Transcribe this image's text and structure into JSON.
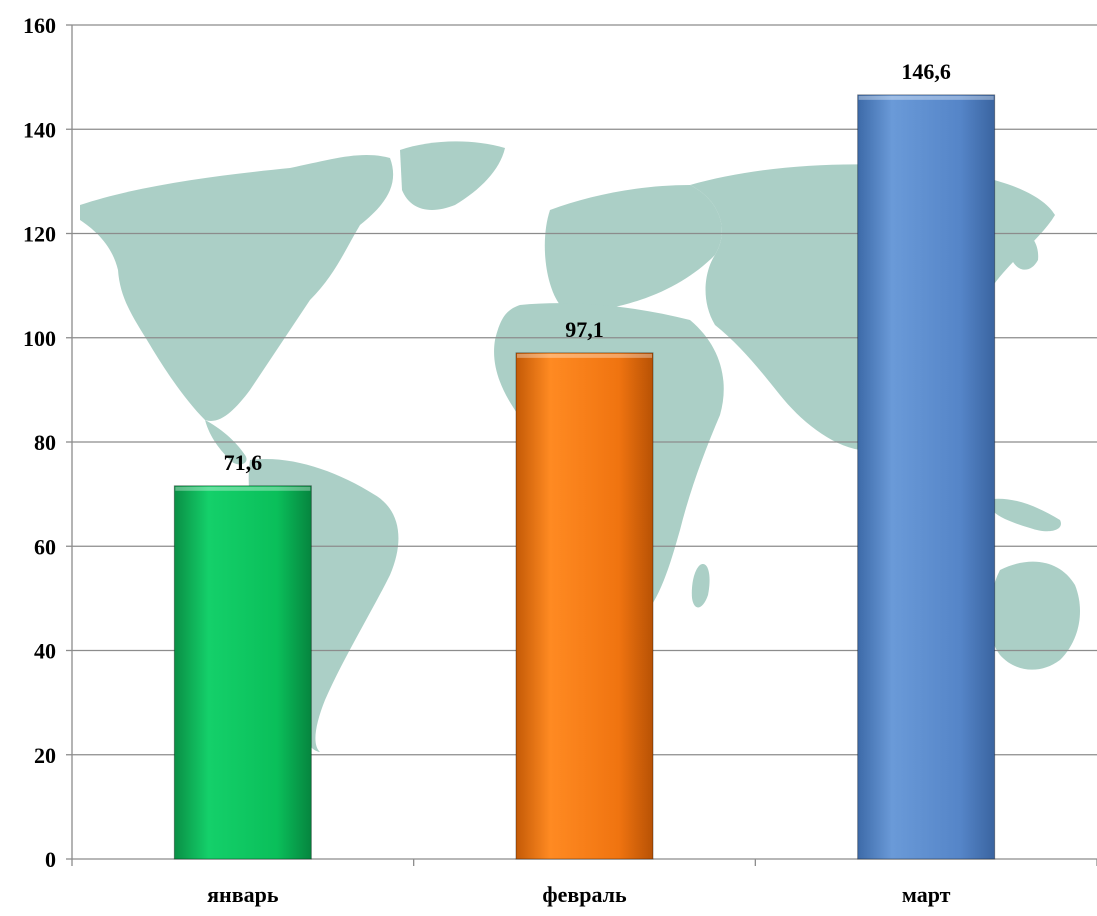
{
  "chart_data": {
    "type": "bar",
    "categories": [
      "январь",
      "февраль",
      "март"
    ],
    "values": [
      71.6,
      97.1,
      146.6
    ],
    "value_labels": [
      "71,6",
      "97,1",
      "146,6"
    ],
    "ylim": [
      0,
      160
    ],
    "yticks": [
      0,
      20,
      40,
      60,
      80,
      100,
      120,
      140,
      160
    ],
    "ytick_labels": [
      "0",
      "20",
      "40",
      "60",
      "80",
      "100",
      "120",
      "140",
      "160"
    ],
    "grid": true,
    "background": "world-map",
    "colors": [
      "#0ABF5A",
      "#F07410",
      "#5585C8"
    ],
    "grid_color": "#8c8c8c",
    "map_color": "#8fbfb3"
  }
}
